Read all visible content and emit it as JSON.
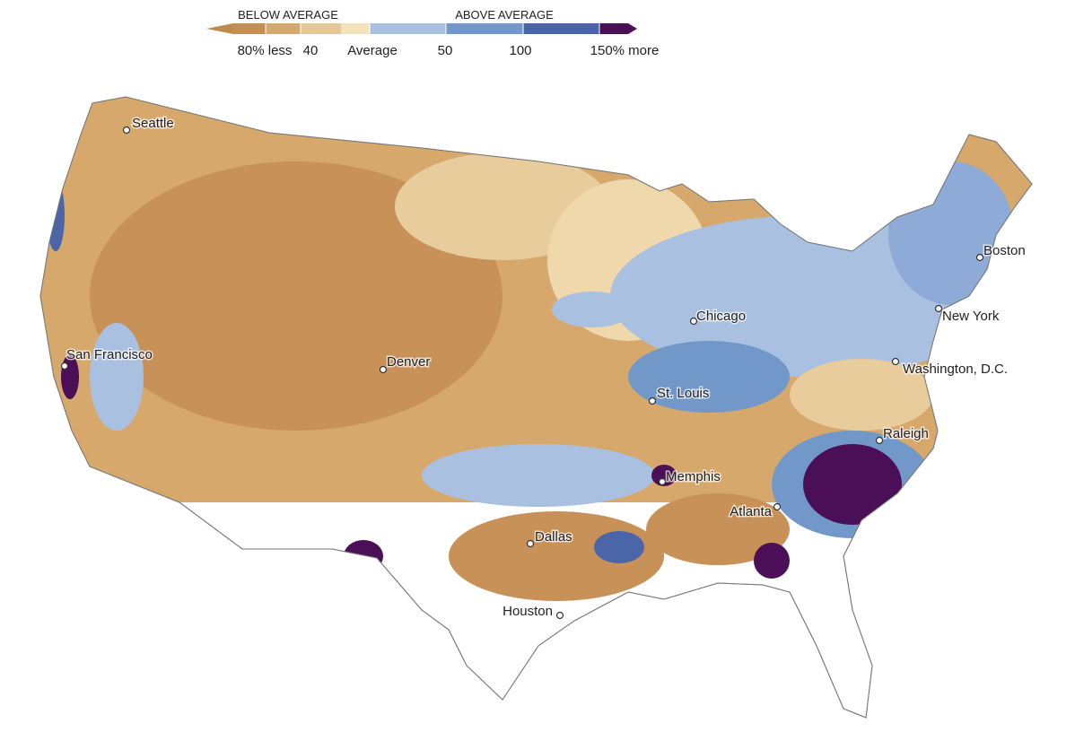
{
  "legend": {
    "below_label": "BELOW AVERAGE",
    "above_label": "ABOVE AVERAGE",
    "ticks": [
      "80% less",
      "40",
      "Average",
      "50",
      "100",
      "150% more"
    ]
  },
  "cities": [
    "Seattle",
    "San Francisco",
    "Denver",
    "Chicago",
    "St. Louis",
    "Memphis",
    "Dallas",
    "Houston",
    "Atlanta",
    "Raleigh",
    "Washington, D.C.",
    "New York",
    "Boston"
  ]
}
